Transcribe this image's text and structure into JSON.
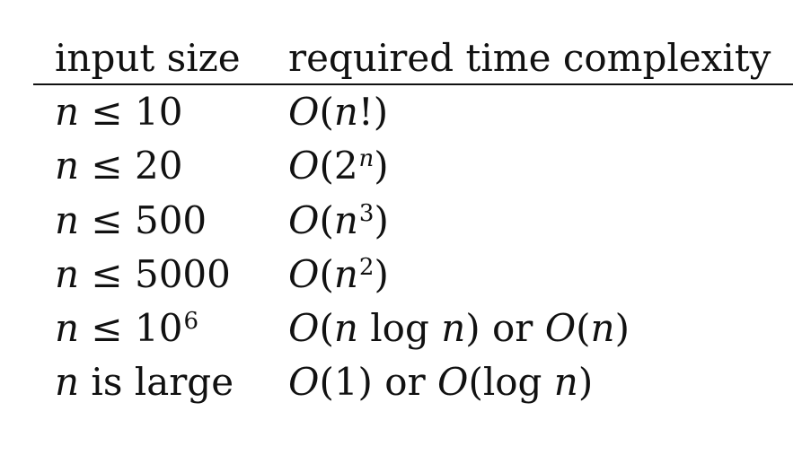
{
  "table": {
    "headers": [
      "input size",
      "required time complexity"
    ],
    "rows": [
      {
        "input_size": {
          "var": "n",
          "rel": "≤",
          "value": "10",
          "exp": ""
        },
        "complexity": "O(n!)"
      },
      {
        "input_size": {
          "var": "n",
          "rel": "≤",
          "value": "20",
          "exp": ""
        },
        "complexity": "O(2^n)"
      },
      {
        "input_size": {
          "var": "n",
          "rel": "≤",
          "value": "500",
          "exp": ""
        },
        "complexity": "O(n^3)"
      },
      {
        "input_size": {
          "var": "n",
          "rel": "≤",
          "value": "5000",
          "exp": ""
        },
        "complexity": "O(n^2)"
      },
      {
        "input_size": {
          "var": "n",
          "rel": "≤",
          "value": "10",
          "exp": "6"
        },
        "complexity": "O(n log n) or O(n)"
      },
      {
        "input_size": {
          "var": "n",
          "rel": "",
          "value": "is large",
          "exp": ""
        },
        "complexity": "O(1) or O(log n)"
      }
    ]
  }
}
